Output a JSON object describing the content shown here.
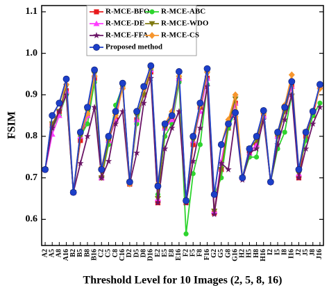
{
  "chart_data": {
    "type": "line",
    "y_label": "FSIM",
    "x_label": "Threshold Level for 10 Images (2, 5, 8, 16)",
    "categories": [
      "A2",
      "A5",
      "A8",
      "A16",
      "B2",
      "B5",
      "B8",
      "B16",
      "C2",
      "C5",
      "C8",
      "C16",
      "D2",
      "D5",
      "D8",
      "D16",
      "E2",
      "E5",
      "E8",
      "E16",
      "F2",
      "F5",
      "F8",
      "F16",
      "G2",
      "G5",
      "G8",
      "G16",
      "H2",
      "H5",
      "H8",
      "H16",
      "I2",
      "I5",
      "I8",
      "I16",
      "J2",
      "J5",
      "J8",
      "J16"
    ],
    "ylim": [
      0.537,
      1.115
    ],
    "yticks": [
      0.6,
      0.7,
      0.8,
      0.9,
      {
        "value": 1,
        "label": "1.0"
      },
      1.1
    ],
    "grid": false,
    "legend_position": "upper-left",
    "series": [
      {
        "name": "R-MCE-BFO",
        "color": "#e8191c",
        "marker": "square",
        "values": [
          0.72,
          0.83,
          0.86,
          0.91,
          0.665,
          0.79,
          0.85,
          0.94,
          0.7,
          0.79,
          0.84,
          0.92,
          0.685,
          0.84,
          0.9,
          0.955,
          0.64,
          0.82,
          0.84,
          0.935,
          0.64,
          0.78,
          0.87,
          0.94,
          0.615,
          0.72,
          0.82,
          0.88,
          0.7,
          0.76,
          0.78,
          0.85,
          0.69,
          0.8,
          0.86,
          0.92,
          0.7,
          0.8,
          0.85,
          0.92
        ]
      },
      {
        "name": "R-MCE-ABC",
        "color": "#2ed42e",
        "marker": "circle",
        "values": [
          0.72,
          0.82,
          0.85,
          0.9,
          0.665,
          0.8,
          0.83,
          0.93,
          0.7,
          0.78,
          0.875,
          0.92,
          0.69,
          0.83,
          0.9,
          0.96,
          0.66,
          0.8,
          0.83,
          0.93,
          0.565,
          0.71,
          0.78,
          0.925,
          0.66,
          0.7,
          0.82,
          0.86,
          0.7,
          0.75,
          0.75,
          0.86,
          0.69,
          0.77,
          0.81,
          0.9,
          0.72,
          0.79,
          0.85,
          0.88
        ]
      },
      {
        "name": "R-MCE-DE",
        "color": "#ff3cff",
        "marker": "triangle",
        "values": [
          0.72,
          0.805,
          0.85,
          0.91,
          0.665,
          0.8,
          0.85,
          0.95,
          0.7,
          0.79,
          0.84,
          0.92,
          0.69,
          0.84,
          0.9,
          0.96,
          0.65,
          0.82,
          0.84,
          0.94,
          0.645,
          0.79,
          0.86,
          0.94,
          0.62,
          0.74,
          0.83,
          0.88,
          0.7,
          0.76,
          0.78,
          0.85,
          0.69,
          0.8,
          0.86,
          0.92,
          0.71,
          0.81,
          0.86,
          0.92
        ]
      },
      {
        "name": "R-MCE-WDO",
        "color": "#7f7a10",
        "marker": "triangle-down",
        "values": [
          0.72,
          0.83,
          0.86,
          0.92,
          0.665,
          0.8,
          0.86,
          0.95,
          0.7,
          0.79,
          0.85,
          0.92,
          0.69,
          0.85,
          0.9,
          0.96,
          0.65,
          0.82,
          0.85,
          0.94,
          0.645,
          0.79,
          0.87,
          0.95,
          0.62,
          0.72,
          0.83,
          0.89,
          0.7,
          0.77,
          0.79,
          0.85,
          0.69,
          0.8,
          0.86,
          0.93,
          0.71,
          0.81,
          0.86,
          0.92
        ]
      },
      {
        "name": "R-MCE-FFA",
        "color": "#6a1466",
        "marker": "star",
        "values": [
          0.72,
          0.82,
          0.86,
          0.9,
          0.665,
          0.735,
          0.8,
          0.87,
          0.7,
          0.74,
          0.83,
          0.86,
          0.685,
          0.76,
          0.88,
          0.94,
          0.64,
          0.77,
          0.82,
          0.86,
          0.64,
          0.74,
          0.82,
          0.92,
          0.612,
          0.735,
          0.72,
          0.845,
          0.695,
          0.76,
          0.77,
          0.84,
          0.69,
          0.78,
          0.84,
          0.9,
          0.7,
          0.77,
          0.83,
          0.87
        ]
      },
      {
        "name": "R-MCE-CS",
        "color": "#f7962e",
        "marker": "diamond",
        "values": [
          0.72,
          0.85,
          0.88,
          0.925,
          0.665,
          0.81,
          0.855,
          0.945,
          0.725,
          0.8,
          0.85,
          0.915,
          0.685,
          0.86,
          0.915,
          0.965,
          0.685,
          0.83,
          0.86,
          0.945,
          0.645,
          0.8,
          0.875,
          0.955,
          0.66,
          0.78,
          0.84,
          0.9,
          0.7,
          0.77,
          0.8,
          0.855,
          0.69,
          0.81,
          0.875,
          0.948,
          0.72,
          0.81,
          0.86,
          0.915
        ]
      },
      {
        "name": "Proposed method",
        "color": "#1c3fc8",
        "marker": "ball",
        "values": [
          0.72,
          0.85,
          0.88,
          0.938,
          0.665,
          0.81,
          0.87,
          0.96,
          0.72,
          0.8,
          0.86,
          0.928,
          0.69,
          0.86,
          0.92,
          0.97,
          0.68,
          0.83,
          0.85,
          0.956,
          0.645,
          0.8,
          0.88,
          0.963,
          0.66,
          0.78,
          0.83,
          0.857,
          0.7,
          0.77,
          0.8,
          0.862,
          0.69,
          0.81,
          0.87,
          0.932,
          0.72,
          0.81,
          0.86,
          0.925
        ]
      }
    ]
  }
}
